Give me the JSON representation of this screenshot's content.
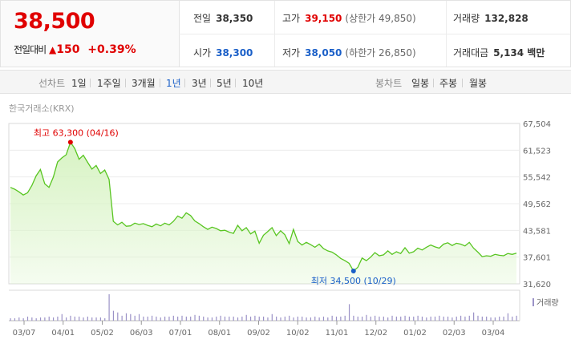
{
  "quote": {
    "price": "38,500",
    "change_label": "전일대비",
    "change_arrow": "▲",
    "change_value": "150",
    "change_pct": "+0.39%",
    "prev_close_label": "전일",
    "prev_close": "38,350",
    "high_label": "고가",
    "high": "39,150",
    "upper_limit": "(상한가 49,850)",
    "volume_label": "거래량",
    "volume": "132,828",
    "open_label": "시가",
    "open": "38,300",
    "low_label": "저가",
    "low": "38,050",
    "lower_limit": "(하한가 26,850)",
    "value_label": "거래대금",
    "value": "5,134 백만"
  },
  "tabs": {
    "line_label": "선차트",
    "periods": [
      "1일",
      "1주일",
      "3개월",
      "1년",
      "3년",
      "5년",
      "10년"
    ],
    "active_period": "1년",
    "candle_label": "봉차트",
    "candles": [
      "일봉",
      "주봉",
      "월봉"
    ]
  },
  "source": "한국거래소(KRX)",
  "chart_data": {
    "type": "area",
    "y_ticks": [
      67504,
      61523,
      55542,
      49562,
      43581,
      37601,
      31620
    ],
    "y_tick_labels": [
      "67,504",
      "61,523",
      "55,542",
      "49,562",
      "43,581",
      "37,601",
      "31,620"
    ],
    "ylim": [
      31620,
      67504
    ],
    "x_ticks": [
      "03/07",
      "04/01",
      "05/02",
      "06/03",
      "07/01",
      "08/01",
      "09/02",
      "10/02",
      "11/01",
      "12/02",
      "01/02",
      "02/03",
      "03/04"
    ],
    "series": [
      {
        "values": [
          53200,
          52800,
          52200,
          51500,
          52000,
          53600,
          55800,
          57200,
          54000,
          53200,
          55500,
          58900,
          59800,
          60500,
          63300,
          61900,
          59500,
          60400,
          58800,
          57300,
          58100,
          56300,
          57100,
          55000,
          45600,
          44800,
          45400,
          44500,
          44600,
          45200,
          44900,
          45100,
          44700,
          44400,
          45000,
          44600,
          45200,
          44800,
          45600,
          46800,
          46300,
          47500,
          46900,
          45700,
          45100,
          44400,
          43800,
          44300,
          44000,
          43500,
          43600,
          43200,
          42900,
          44700,
          43500,
          44200,
          42800,
          43400,
          40700,
          42500,
          43300,
          44200,
          42400,
          43500,
          42600,
          40600,
          43800,
          41100,
          40300,
          40900,
          40400,
          39800,
          40500,
          39500,
          39000,
          38700,
          38100,
          37300,
          36800,
          36200,
          34500,
          35300,
          37400,
          36800,
          37600,
          38600,
          37900,
          38100,
          39000,
          38200,
          38800,
          38400,
          39700,
          38500,
          38800,
          39600,
          39200,
          39800,
          40300,
          39900,
          39600,
          40500,
          40800,
          40200,
          40700,
          40500,
          40100,
          40900,
          39600,
          38700,
          37700,
          37900,
          37800,
          38200,
          38000,
          37900,
          38400,
          38200,
          38500
        ]
      }
    ],
    "max_annotation": {
      "label": "최고",
      "value": "63,300",
      "date": "(04/16)"
    },
    "min_annotation": {
      "label": "최저",
      "value": "34,500",
      "date": "(10/29)"
    },
    "volume_legend": "거래량",
    "volume": [
      3,
      3,
      4,
      3,
      5,
      4,
      3,
      4,
      4,
      5,
      4,
      5,
      8,
      4,
      6,
      5,
      5,
      4,
      5,
      4,
      4,
      4,
      3,
      32,
      12,
      10,
      6,
      9,
      8,
      6,
      8,
      5,
      5,
      6,
      5,
      4,
      5,
      5,
      6,
      5,
      6,
      5,
      5,
      7,
      6,
      5,
      4,
      4,
      5,
      6,
      5,
      5,
      5,
      4,
      5,
      7,
      5,
      6,
      5,
      5,
      4,
      8,
      5,
      4,
      5,
      6,
      4,
      5,
      5,
      4,
      4,
      5,
      4,
      5,
      4,
      6,
      5,
      5,
      6,
      20,
      6,
      5,
      5,
      7,
      5,
      6,
      5,
      5,
      4,
      6,
      5,
      5,
      6,
      5,
      5,
      6,
      5,
      4,
      5,
      5,
      6,
      5,
      5,
      4,
      5,
      6,
      5,
      6,
      10,
      6,
      5,
      5,
      4,
      4,
      5,
      5,
      9,
      5,
      6
    ]
  },
  "colors": {
    "up": "#e00000",
    "down": "#1a5fc8",
    "line": "#58c521",
    "fill": "#d7f3c3",
    "volume": "#9b92c7"
  }
}
